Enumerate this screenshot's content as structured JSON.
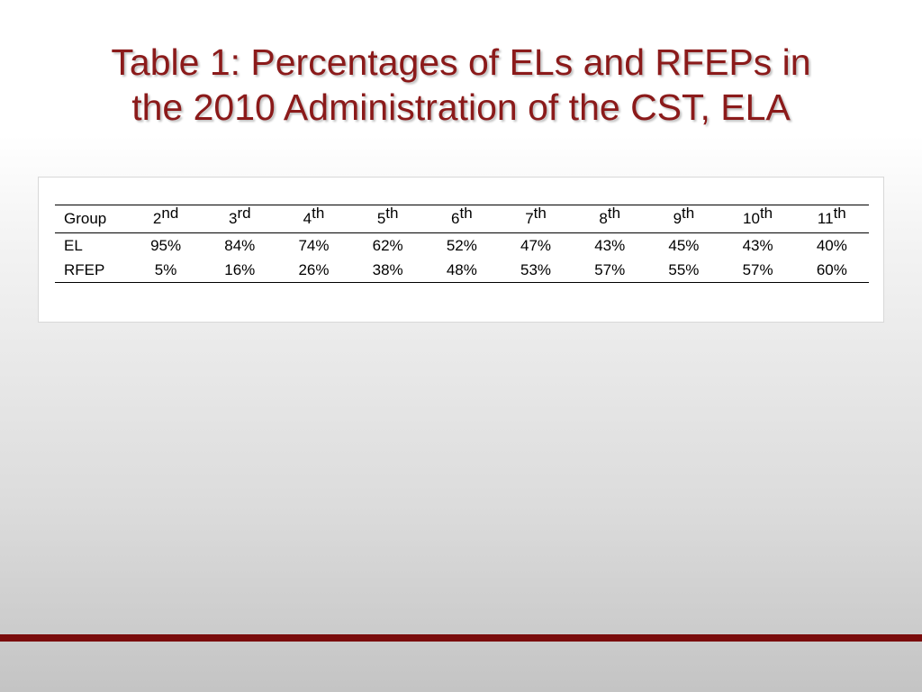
{
  "slide": {
    "title_line1": "Table 1: Percentages of ELs and RFEPs in",
    "title_line2": "the 2010 Administration of the CST, ELA",
    "title_color": "#8b1a1a",
    "accent_bar_color": "#7a0c0c"
  },
  "table": {
    "group_header": "Group",
    "grades": [
      {
        "num": "2",
        "suffix": "nd"
      },
      {
        "num": "3",
        "suffix": "rd"
      },
      {
        "num": "4",
        "suffix": "th"
      },
      {
        "num": "5",
        "suffix": "th"
      },
      {
        "num": "6",
        "suffix": "th"
      },
      {
        "num": "7",
        "suffix": "th"
      },
      {
        "num": "8",
        "suffix": "th"
      },
      {
        "num": "9",
        "suffix": "th"
      },
      {
        "num": "10",
        "suffix": "th"
      },
      {
        "num": "11",
        "suffix": "th"
      }
    ],
    "rows": [
      {
        "group": "EL",
        "values": [
          "95%",
          "84%",
          "74%",
          "62%",
          "52%",
          "47%",
          "43%",
          "45%",
          "43%",
          "40%"
        ]
      },
      {
        "group": "RFEP",
        "values": [
          "5%",
          "16%",
          "26%",
          "38%",
          "48%",
          "53%",
          "57%",
          "55%",
          "57%",
          "60%"
        ]
      }
    ]
  }
}
